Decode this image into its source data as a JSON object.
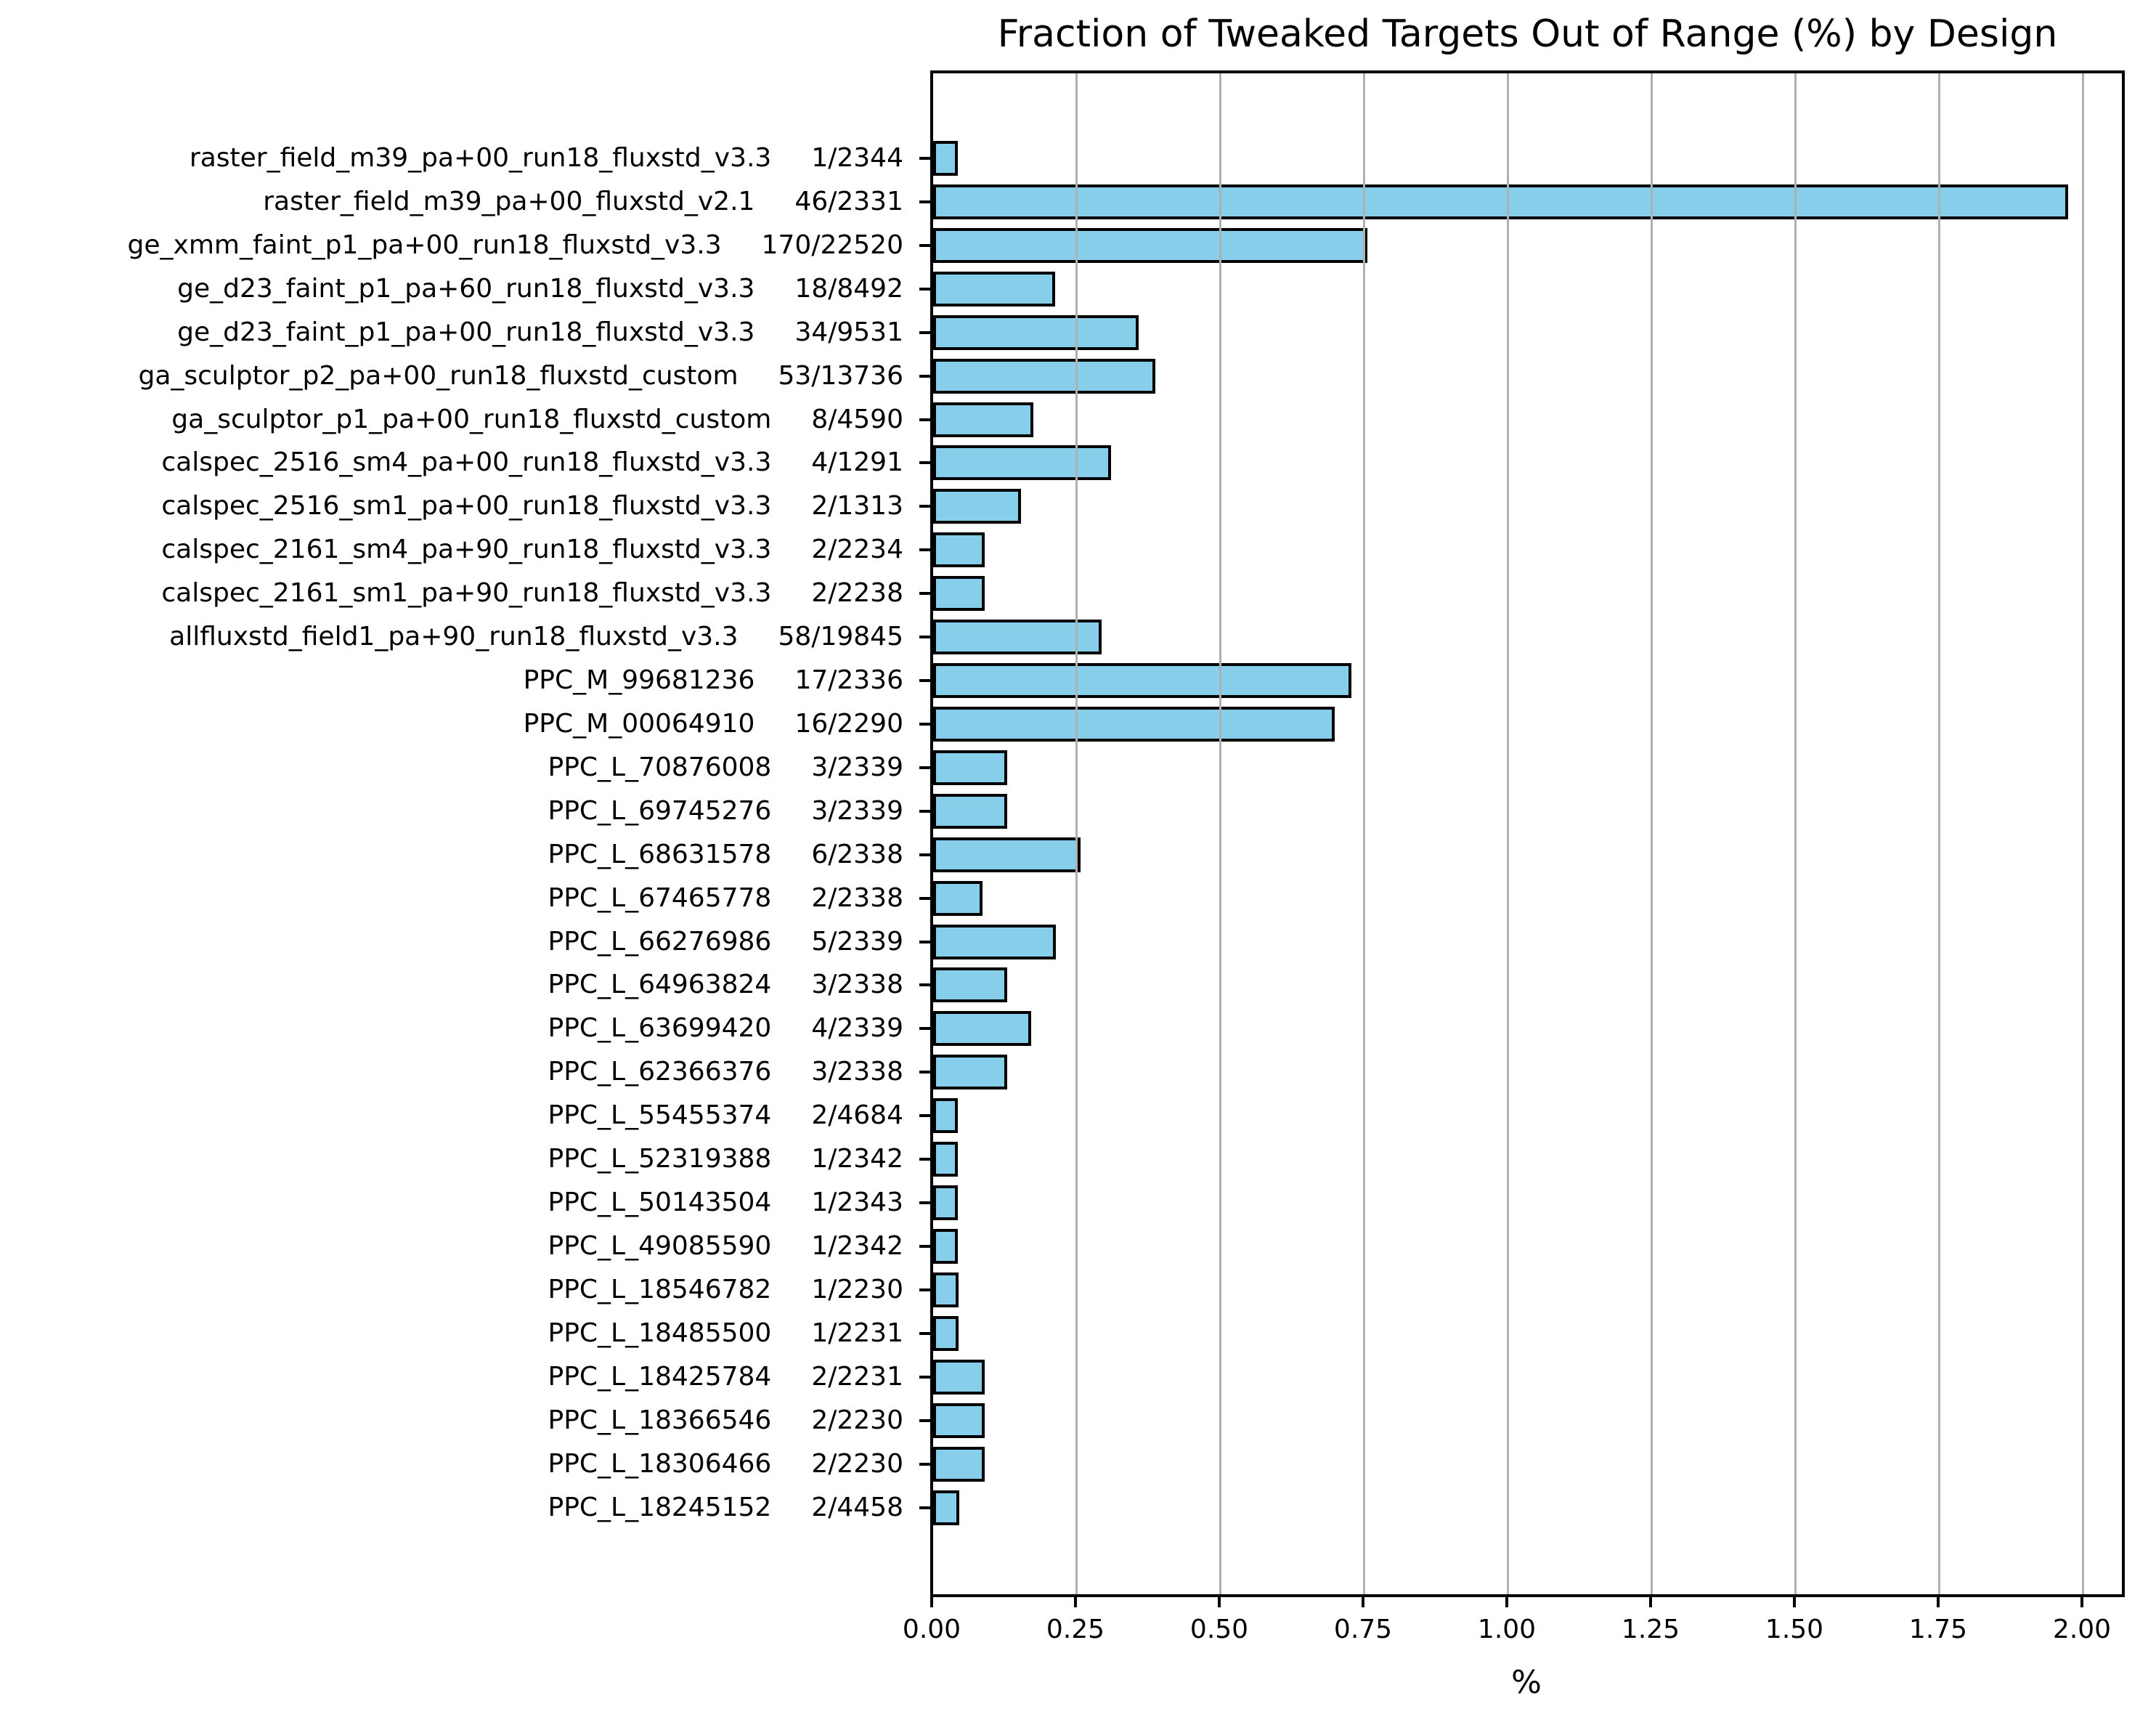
{
  "chart_data": {
    "type": "bar",
    "orientation": "horizontal",
    "title": "Fraction of Tweaked Targets Out of Range (%) by Design",
    "xlabel": "%",
    "xlim": [
      0,
      2.072
    ],
    "xtick_labels": [
      "0.00",
      "0.25",
      "0.50",
      "0.75",
      "1.00",
      "1.25",
      "1.50",
      "1.75",
      "2.00"
    ],
    "grid": "vertical",
    "legend": "none",
    "colors": {
      "bar_fill": "#87CEEB",
      "bar_edge": "#000000",
      "grid": "#b0b0b0",
      "spine": "#000000",
      "text": "#000000",
      "background": "#ffffff"
    },
    "bars": [
      {
        "label": "raster_field_m39_pa+00_run18_fluxstd_v3.3",
        "count": "1/2344",
        "value_pct": 0.0427
      },
      {
        "label": "raster_field_m39_pa+00_fluxstd_v2.1",
        "count": "46/2331",
        "value_pct": 1.9734
      },
      {
        "label": "ge_xmm_faint_p1_pa+00_run18_fluxstd_v3.3",
        "count": "170/22520",
        "value_pct": 0.7549
      },
      {
        "label": "ge_d23_faint_p1_pa+60_run18_fluxstd_v3.3",
        "count": "18/8492",
        "value_pct": 0.212
      },
      {
        "label": "ge_d23_faint_p1_pa+00_run18_fluxstd_v3.3",
        "count": "34/9531",
        "value_pct": 0.3567
      },
      {
        "label": "ga_sculptor_p2_pa+00_run18_fluxstd_custom",
        "count": "53/13736",
        "value_pct": 0.3858
      },
      {
        "label": "ga_sculptor_p1_pa+00_run18_fluxstd_custom",
        "count": "8/4590",
        "value_pct": 0.1743
      },
      {
        "label": "calspec_2516_sm4_pa+00_run18_fluxstd_v3.3",
        "count": "4/1291",
        "value_pct": 0.3098
      },
      {
        "label": "calspec_2516_sm1_pa+00_run18_fluxstd_v3.3",
        "count": "2/1313",
        "value_pct": 0.1523
      },
      {
        "label": "calspec_2161_sm4_pa+90_run18_fluxstd_v3.3",
        "count": "2/2234",
        "value_pct": 0.0895
      },
      {
        "label": "calspec_2161_sm1_pa+90_run18_fluxstd_v3.3",
        "count": "2/2238",
        "value_pct": 0.0894
      },
      {
        "label": "allfluxstd_field1_pa+90_run18_fluxstd_v3.3",
        "count": "58/19845",
        "value_pct": 0.2923
      },
      {
        "label": "PPC_M_99681236",
        "count": "17/2336",
        "value_pct": 0.7277
      },
      {
        "label": "PPC_M_00064910",
        "count": "16/2290",
        "value_pct": 0.6987
      },
      {
        "label": "PPC_L_70876008",
        "count": "3/2339",
        "value_pct": 0.1283
      },
      {
        "label": "PPC_L_69745276",
        "count": "3/2339",
        "value_pct": 0.1283
      },
      {
        "label": "PPC_L_68631578",
        "count": "6/2338",
        "value_pct": 0.2566
      },
      {
        "label": "PPC_L_67465778",
        "count": "2/2338",
        "value_pct": 0.0855
      },
      {
        "label": "PPC_L_66276986",
        "count": "5/2339",
        "value_pct": 0.2138
      },
      {
        "label": "PPC_L_64963824",
        "count": "3/2338",
        "value_pct": 0.1283
      },
      {
        "label": "PPC_L_63699420",
        "count": "4/2339",
        "value_pct": 0.171
      },
      {
        "label": "PPC_L_62366376",
        "count": "3/2338",
        "value_pct": 0.1283
      },
      {
        "label": "PPC_L_55455374",
        "count": "2/4684",
        "value_pct": 0.0427
      },
      {
        "label": "PPC_L_52319388",
        "count": "1/2342",
        "value_pct": 0.0427
      },
      {
        "label": "PPC_L_50143504",
        "count": "1/2343",
        "value_pct": 0.0427
      },
      {
        "label": "PPC_L_49085590",
        "count": "1/2342",
        "value_pct": 0.0427
      },
      {
        "label": "PPC_L_18546782",
        "count": "1/2230",
        "value_pct": 0.0448
      },
      {
        "label": "PPC_L_18485500",
        "count": "1/2231",
        "value_pct": 0.0448
      },
      {
        "label": "PPC_L_18425784",
        "count": "2/2231",
        "value_pct": 0.0896
      },
      {
        "label": "PPC_L_18366546",
        "count": "2/2230",
        "value_pct": 0.0897
      },
      {
        "label": "PPC_L_18306466",
        "count": "2/2230",
        "value_pct": 0.0897
      },
      {
        "label": "PPC_L_18245152",
        "count": "2/4458",
        "value_pct": 0.0449
      }
    ]
  }
}
